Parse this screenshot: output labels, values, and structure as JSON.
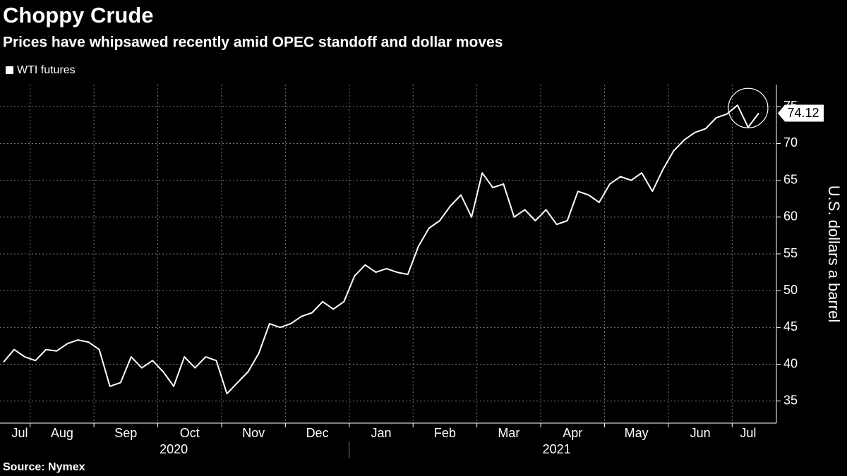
{
  "chart_data": {
    "type": "line",
    "title": "Choppy Crude",
    "subtitle": "Prices have whipsawed recently amid OPEC standoff and dollar moves",
    "y_label": "U.S. dollars a barrel",
    "source": "Source: Nymex",
    "x": [
      "2020-07",
      "2020-07",
      "2020-07",
      "2020-08",
      "2020-08",
      "2020-08",
      "2020-08",
      "2020-08",
      "2020-08",
      "2020-09",
      "2020-09",
      "2020-09",
      "2020-09",
      "2020-09",
      "2020-09",
      "2020-10",
      "2020-10",
      "2020-10",
      "2020-10",
      "2020-10",
      "2020-10",
      "2020-11",
      "2020-11",
      "2020-11",
      "2020-11",
      "2020-11",
      "2020-11",
      "2020-12",
      "2020-12",
      "2020-12",
      "2020-12",
      "2020-12",
      "2020-12",
      "2021-01",
      "2021-01",
      "2021-01",
      "2021-01",
      "2021-01",
      "2021-01",
      "2021-02",
      "2021-02",
      "2021-02",
      "2021-02",
      "2021-02",
      "2021-02",
      "2021-03",
      "2021-03",
      "2021-03",
      "2021-03",
      "2021-03",
      "2021-03",
      "2021-04",
      "2021-04",
      "2021-04",
      "2021-04",
      "2021-04",
      "2021-04",
      "2021-05",
      "2021-05",
      "2021-05",
      "2021-05",
      "2021-05",
      "2021-05",
      "2021-06",
      "2021-06",
      "2021-06",
      "2021-06",
      "2021-06",
      "2021-06",
      "2021-07",
      "2021-07",
      "2021-07"
    ],
    "month_labels": [
      "Jul",
      "Aug",
      "Sep",
      "Oct",
      "Nov",
      "Dec",
      "Jan",
      "Feb",
      "Mar",
      "Apr",
      "May",
      "Jun",
      "Jul"
    ],
    "year_labels": [
      "2020",
      "2021"
    ],
    "series": [
      {
        "name": "WTI futures",
        "color": "#ffffff",
        "values": [
          40.3,
          42,
          41,
          40.5,
          42,
          41.8,
          42.8,
          43.3,
          43,
          42,
          37,
          37.5,
          41,
          39.5,
          40.5,
          39,
          37,
          41,
          39.5,
          41,
          40.5,
          36,
          37.5,
          39,
          41.5,
          45.5,
          45,
          45.5,
          46.5,
          47,
          48.5,
          47.5,
          48.5,
          52,
          53.5,
          52.5,
          53,
          52.5,
          52.2,
          56,
          58.5,
          59.5,
          61.5,
          63,
          60,
          66,
          64,
          64.5,
          60,
          61,
          59.5,
          61,
          59,
          59.5,
          63.5,
          63,
          62,
          64.5,
          65.5,
          65,
          66,
          63.5,
          66.5,
          69,
          70.5,
          71.5,
          72,
          73.5,
          74,
          75.2,
          72.2,
          74.12
        ]
      }
    ],
    "ylim": [
      32,
      78
    ],
    "yticks": [
      35,
      40,
      45,
      50,
      55,
      60,
      65,
      70,
      75
    ],
    "grid": true,
    "legend": "top-left"
  }
}
